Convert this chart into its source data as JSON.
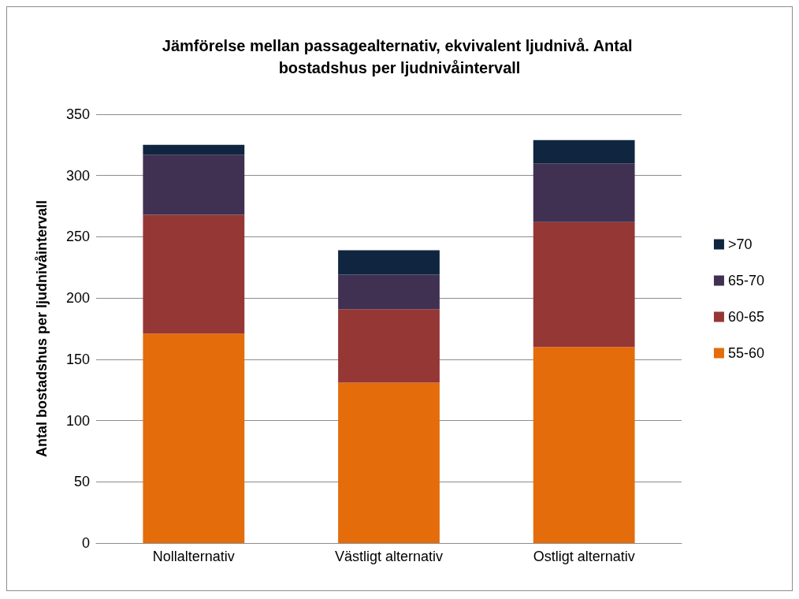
{
  "chart_data": {
    "type": "bar",
    "stacked": true,
    "title": "Jämförelse mellan passagealternativ, ekvivalent ljudnivå. Antal bostadshus per ljudnivåintervall",
    "ylabel": "Antal bostadshus per ljudnivåintervall",
    "categories": [
      "Nollalternativ",
      "Västligt alternativ",
      "Ostligt alternativ"
    ],
    "series": [
      {
        "name": "55-60",
        "color": "#e46c0a",
        "values": [
          171,
          131,
          160
        ]
      },
      {
        "name": "60-65",
        "color": "#953735",
        "values": [
          97,
          60,
          102
        ]
      },
      {
        "name": "65-70",
        "color": "#403152",
        "values": [
          49,
          28,
          48
        ]
      },
      {
        "name": ">70",
        "color": "#10253f",
        "values": [
          8,
          20,
          19
        ]
      }
    ],
    "ylim": [
      0,
      350
    ],
    "yticks": [
      0,
      50,
      100,
      150,
      200,
      250,
      300,
      350
    ],
    "grid": "y",
    "legend": "right"
  }
}
